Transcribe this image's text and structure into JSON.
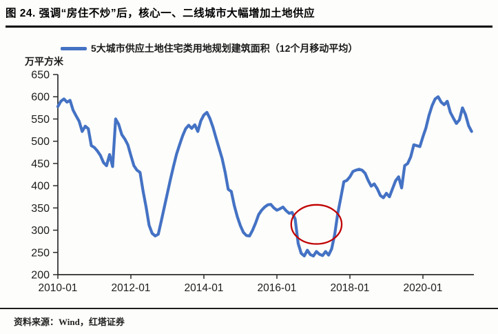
{
  "figure": {
    "title": "图 24. 强调“房住不炒”后，核心一、二线城市大幅增加土地供应",
    "source": "资料来源：Wind，红塔证券"
  },
  "chart_data": {
    "type": "line",
    "title": "",
    "legend": "5大城市供应土地住宅类用地规划建筑面积（12个月移动平均）",
    "ylabel": "万平方米",
    "xlabel": "",
    "ylim": [
      200,
      650
    ],
    "yticks": [
      200,
      250,
      300,
      350,
      400,
      450,
      500,
      550,
      600,
      650
    ],
    "xticks": [
      "2010-01",
      "2012-01",
      "2014-01",
      "2016-01",
      "2018-01",
      "2020-01"
    ],
    "grid": false,
    "legend_position": "top-center",
    "axis_color": "#2b2b2b",
    "series": [
      {
        "name": "5大城市供应土地住宅类用地规划建筑面积（12个月移动平均）",
        "color": "#4472C4",
        "frequency": "monthly",
        "start_month": "2010-01",
        "end_month": "2021-05",
        "values": [
          578,
          590,
          595,
          588,
          592,
          570,
          557,
          545,
          522,
          534,
          528,
          490,
          486,
          478,
          468,
          452,
          445,
          470,
          443,
          550,
          538,
          515,
          505,
          492,
          468,
          445,
          435,
          430,
          388,
          352,
          311,
          293,
          287,
          291,
          321,
          352,
          383,
          414,
          443,
          471,
          492,
          512,
          528,
          536,
          529,
          537,
          522,
          546,
          559,
          565,
          551,
          531,
          507,
          484,
          461,
          430,
          392,
          387,
          355,
          330,
          310,
          295,
          288,
          287,
          300,
          316,
          335,
          345,
          352,
          357,
          358,
          350,
          345,
          348,
          352,
          344,
          338,
          340,
          325,
          270,
          248,
          242,
          255,
          245,
          242,
          252,
          246,
          243,
          252,
          244,
          258,
          290,
          337,
          373,
          409,
          412,
          420,
          432,
          435,
          437,
          435,
          428,
          412,
          399,
          404,
          393,
          378,
          373,
          383,
          375,
          393,
          411,
          420,
          395,
          445,
          450,
          465,
          492,
          490,
          488,
          510,
          530,
          558,
          580,
          595,
          600,
          588,
          582,
          590,
          565,
          552,
          540,
          548,
          575,
          560,
          535,
          522
        ]
      }
    ],
    "annotation": {
      "shape": "ellipse",
      "color": "#C00000",
      "center_month": "2017-02",
      "center_value": 313,
      "radius_months": 8.3,
      "radius_value": 44
    }
  }
}
